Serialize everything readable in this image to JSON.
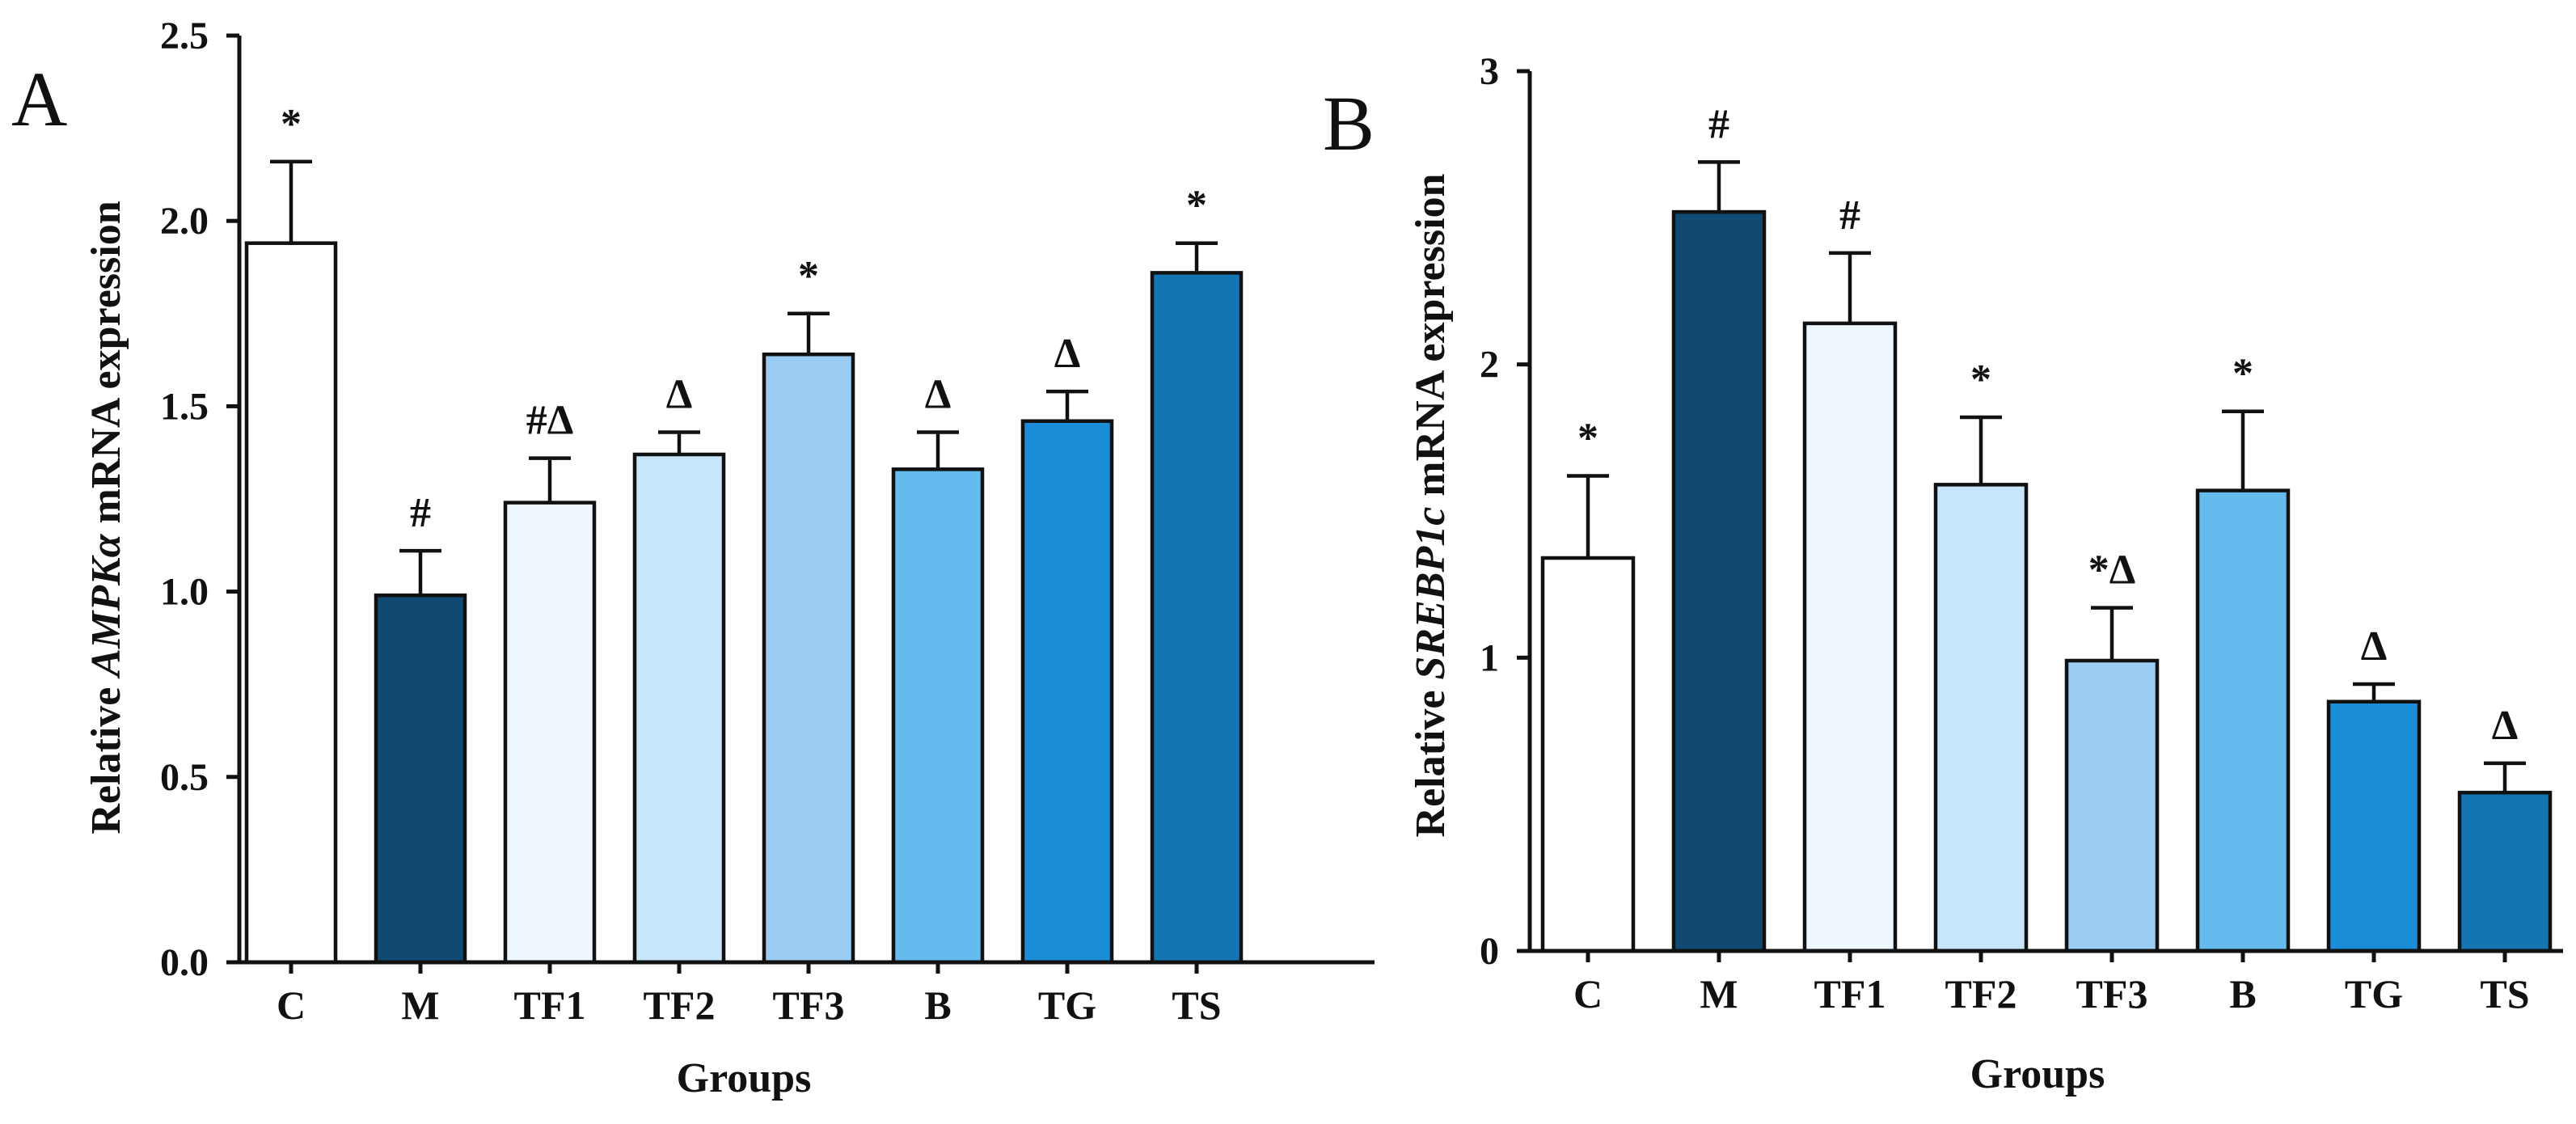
{
  "chart_data": [
    {
      "panel": "A",
      "type": "bar",
      "title": "",
      "categories": [
        "C",
        "M",
        "TF1",
        "TF2",
        "TF3",
        "B",
        "TG",
        "TS"
      ],
      "values": [
        1.94,
        0.99,
        1.24,
        1.37,
        1.64,
        1.33,
        1.46,
        1.86
      ],
      "errors": [
        0.22,
        0.12,
        0.12,
        0.06,
        0.11,
        0.1,
        0.08,
        0.08
      ],
      "significance": [
        "*",
        "#",
        "#Δ",
        "Δ",
        "*",
        "Δ",
        "Δ",
        "*"
      ],
      "colors": [
        "#ffffff",
        "#104a72",
        "#eff7fe",
        "#c8e6fb",
        "#9bccf3",
        "#66bbee",
        "#1a8cd8",
        "#1574b2"
      ],
      "ylabel_prefix": "Relative ",
      "ylabel_gene": "AMPKα",
      "ylabel_suffix": " mRNA expression",
      "xlabel": "Groups",
      "ylim": [
        0,
        2.5
      ],
      "yticks": [
        "0.0",
        "0.5",
        "1.0",
        "1.5",
        "2.0",
        "2.5"
      ]
    },
    {
      "panel": "B",
      "type": "bar",
      "title": "",
      "categories": [
        "C",
        "M",
        "TF1",
        "TF2",
        "TF3",
        "B",
        "TG",
        "TS"
      ],
      "values": [
        1.34,
        2.52,
        2.14,
        1.59,
        0.99,
        1.57,
        0.85,
        0.54
      ],
      "errors": [
        0.28,
        0.17,
        0.24,
        0.23,
        0.18,
        0.27,
        0.06,
        0.1
      ],
      "significance": [
        "*",
        "#",
        "#",
        "*",
        "*Δ",
        "*",
        "Δ",
        "Δ"
      ],
      "colors": [
        "#ffffff",
        "#104a72",
        "#eff7fe",
        "#c8e6fb",
        "#9bccf3",
        "#66bbee",
        "#1a8cd8",
        "#1574b2"
      ],
      "ylabel_prefix": "Relative ",
      "ylabel_gene": "SREBP1c",
      "ylabel_suffix": " mRNA expression",
      "xlabel": "Groups",
      "ylim": [
        0,
        3
      ],
      "yticks": [
        "0",
        "1",
        "2",
        "3"
      ]
    }
  ]
}
